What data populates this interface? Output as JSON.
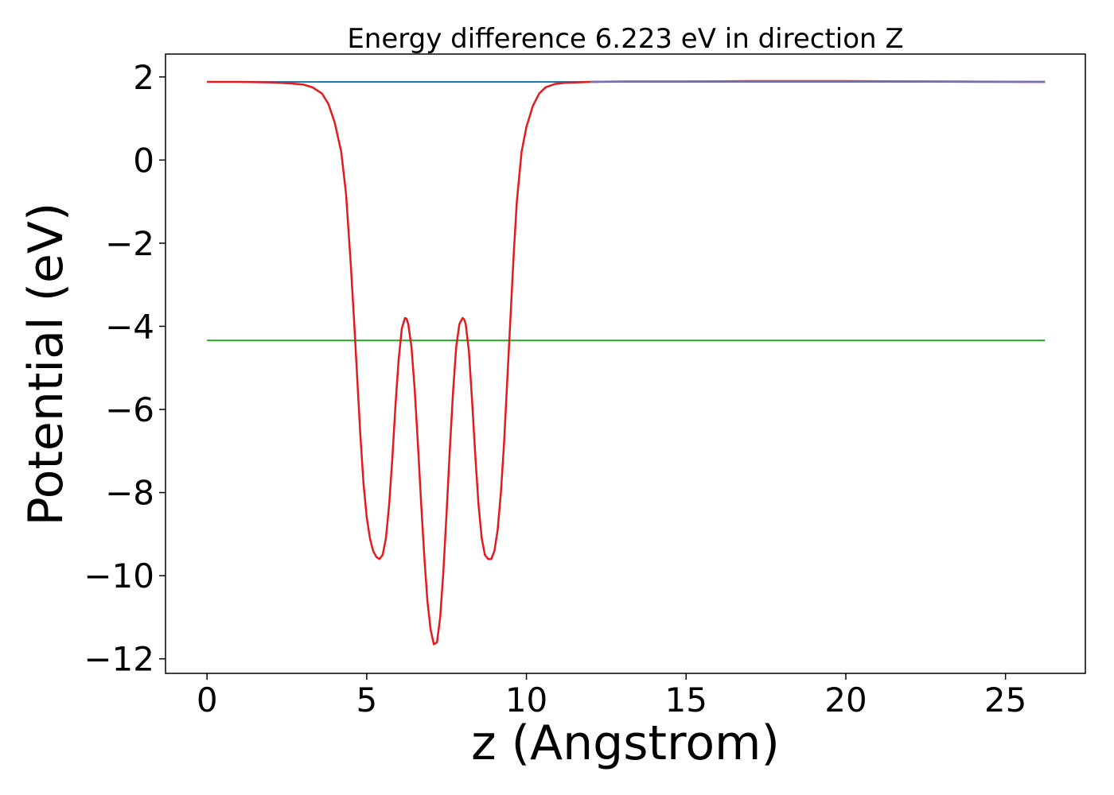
{
  "chart_data": {
    "type": "line",
    "title": "Energy difference 6.223 eV in direction Z",
    "xlabel": "z (Angstrom)",
    "ylabel": "Potential (eV)",
    "xlim": [
      -1.3,
      27.5
    ],
    "ylim": [
      -12.35,
      2.55
    ],
    "xticks": [
      0,
      5,
      10,
      15,
      20,
      25
    ],
    "yticks": [
      2,
      0,
      -2,
      -4,
      -6,
      -8,
      -10,
      -12
    ],
    "grid": false,
    "series": [
      {
        "color": "#1f77b4",
        "kind": "hline",
        "x": [
          0,
          26.24
        ],
        "y": [
          1.88,
          1.88
        ]
      },
      {
        "color": "#2ca02c",
        "kind": "hline",
        "x": [
          0,
          26.24
        ],
        "y": [
          -4.34,
          -4.34
        ]
      },
      {
        "color": "#e41a1c",
        "kind": "curve",
        "x": [
          0,
          1,
          2,
          2.5,
          3,
          3.3,
          3.6,
          3.8,
          4.0,
          4.2,
          4.35,
          4.5,
          4.6,
          4.7,
          4.8,
          4.9,
          5.0,
          5.1,
          5.2,
          5.3,
          5.4,
          5.5,
          5.6,
          5.7,
          5.8,
          5.9,
          6.0,
          6.1,
          6.2,
          6.25,
          6.3,
          6.4,
          6.5,
          6.6,
          6.7,
          6.8,
          6.9,
          7.0,
          7.1,
          7.2,
          7.3,
          7.4,
          7.5,
          7.6,
          7.7,
          7.8,
          7.9,
          8.0,
          8.05,
          8.1,
          8.2,
          8.3,
          8.4,
          8.5,
          8.6,
          8.7,
          8.8,
          8.9,
          9.0,
          9.1,
          9.2,
          9.3,
          9.4,
          9.5,
          9.6,
          9.7,
          9.85,
          10.0,
          10.2,
          10.4,
          10.6,
          10.9,
          11.2,
          11.6,
          12.0,
          13.0,
          15.0,
          17.0,
          20.0,
          23.0,
          26.24
        ],
        "y": [
          1.88,
          1.88,
          1.87,
          1.85,
          1.82,
          1.75,
          1.6,
          1.35,
          0.9,
          0.2,
          -0.8,
          -2.5,
          -3.8,
          -5.2,
          -6.6,
          -7.8,
          -8.6,
          -9.1,
          -9.4,
          -9.55,
          -9.6,
          -9.5,
          -9.1,
          -8.3,
          -7.2,
          -5.9,
          -4.8,
          -4.05,
          -3.8,
          -3.82,
          -3.95,
          -4.5,
          -5.5,
          -6.8,
          -8.2,
          -9.5,
          -10.6,
          -11.3,
          -11.65,
          -11.6,
          -11.0,
          -9.9,
          -8.5,
          -7.0,
          -5.6,
          -4.5,
          -3.95,
          -3.8,
          -3.83,
          -3.95,
          -4.6,
          -5.8,
          -7.1,
          -8.3,
          -9.1,
          -9.5,
          -9.6,
          -9.6,
          -9.4,
          -8.9,
          -8.0,
          -6.8,
          -5.3,
          -3.8,
          -2.3,
          -1.0,
          0.2,
          0.8,
          1.3,
          1.6,
          1.75,
          1.83,
          1.86,
          1.87,
          1.88,
          1.89,
          1.89,
          1.9,
          1.9,
          1.89,
          1.88
        ]
      },
      {
        "color": "#7570b3",
        "kind": "curve",
        "x": [
          0,
          2,
          4,
          6,
          8,
          10,
          12,
          14,
          16,
          18,
          20,
          22,
          24,
          26.24
        ],
        "y": [
          1.88,
          1.88,
          1.88,
          1.88,
          1.88,
          1.88,
          1.88,
          1.89,
          1.89,
          1.89,
          1.89,
          1.89,
          1.88,
          1.88
        ],
        "visible_from_x": 11.6
      }
    ]
  }
}
